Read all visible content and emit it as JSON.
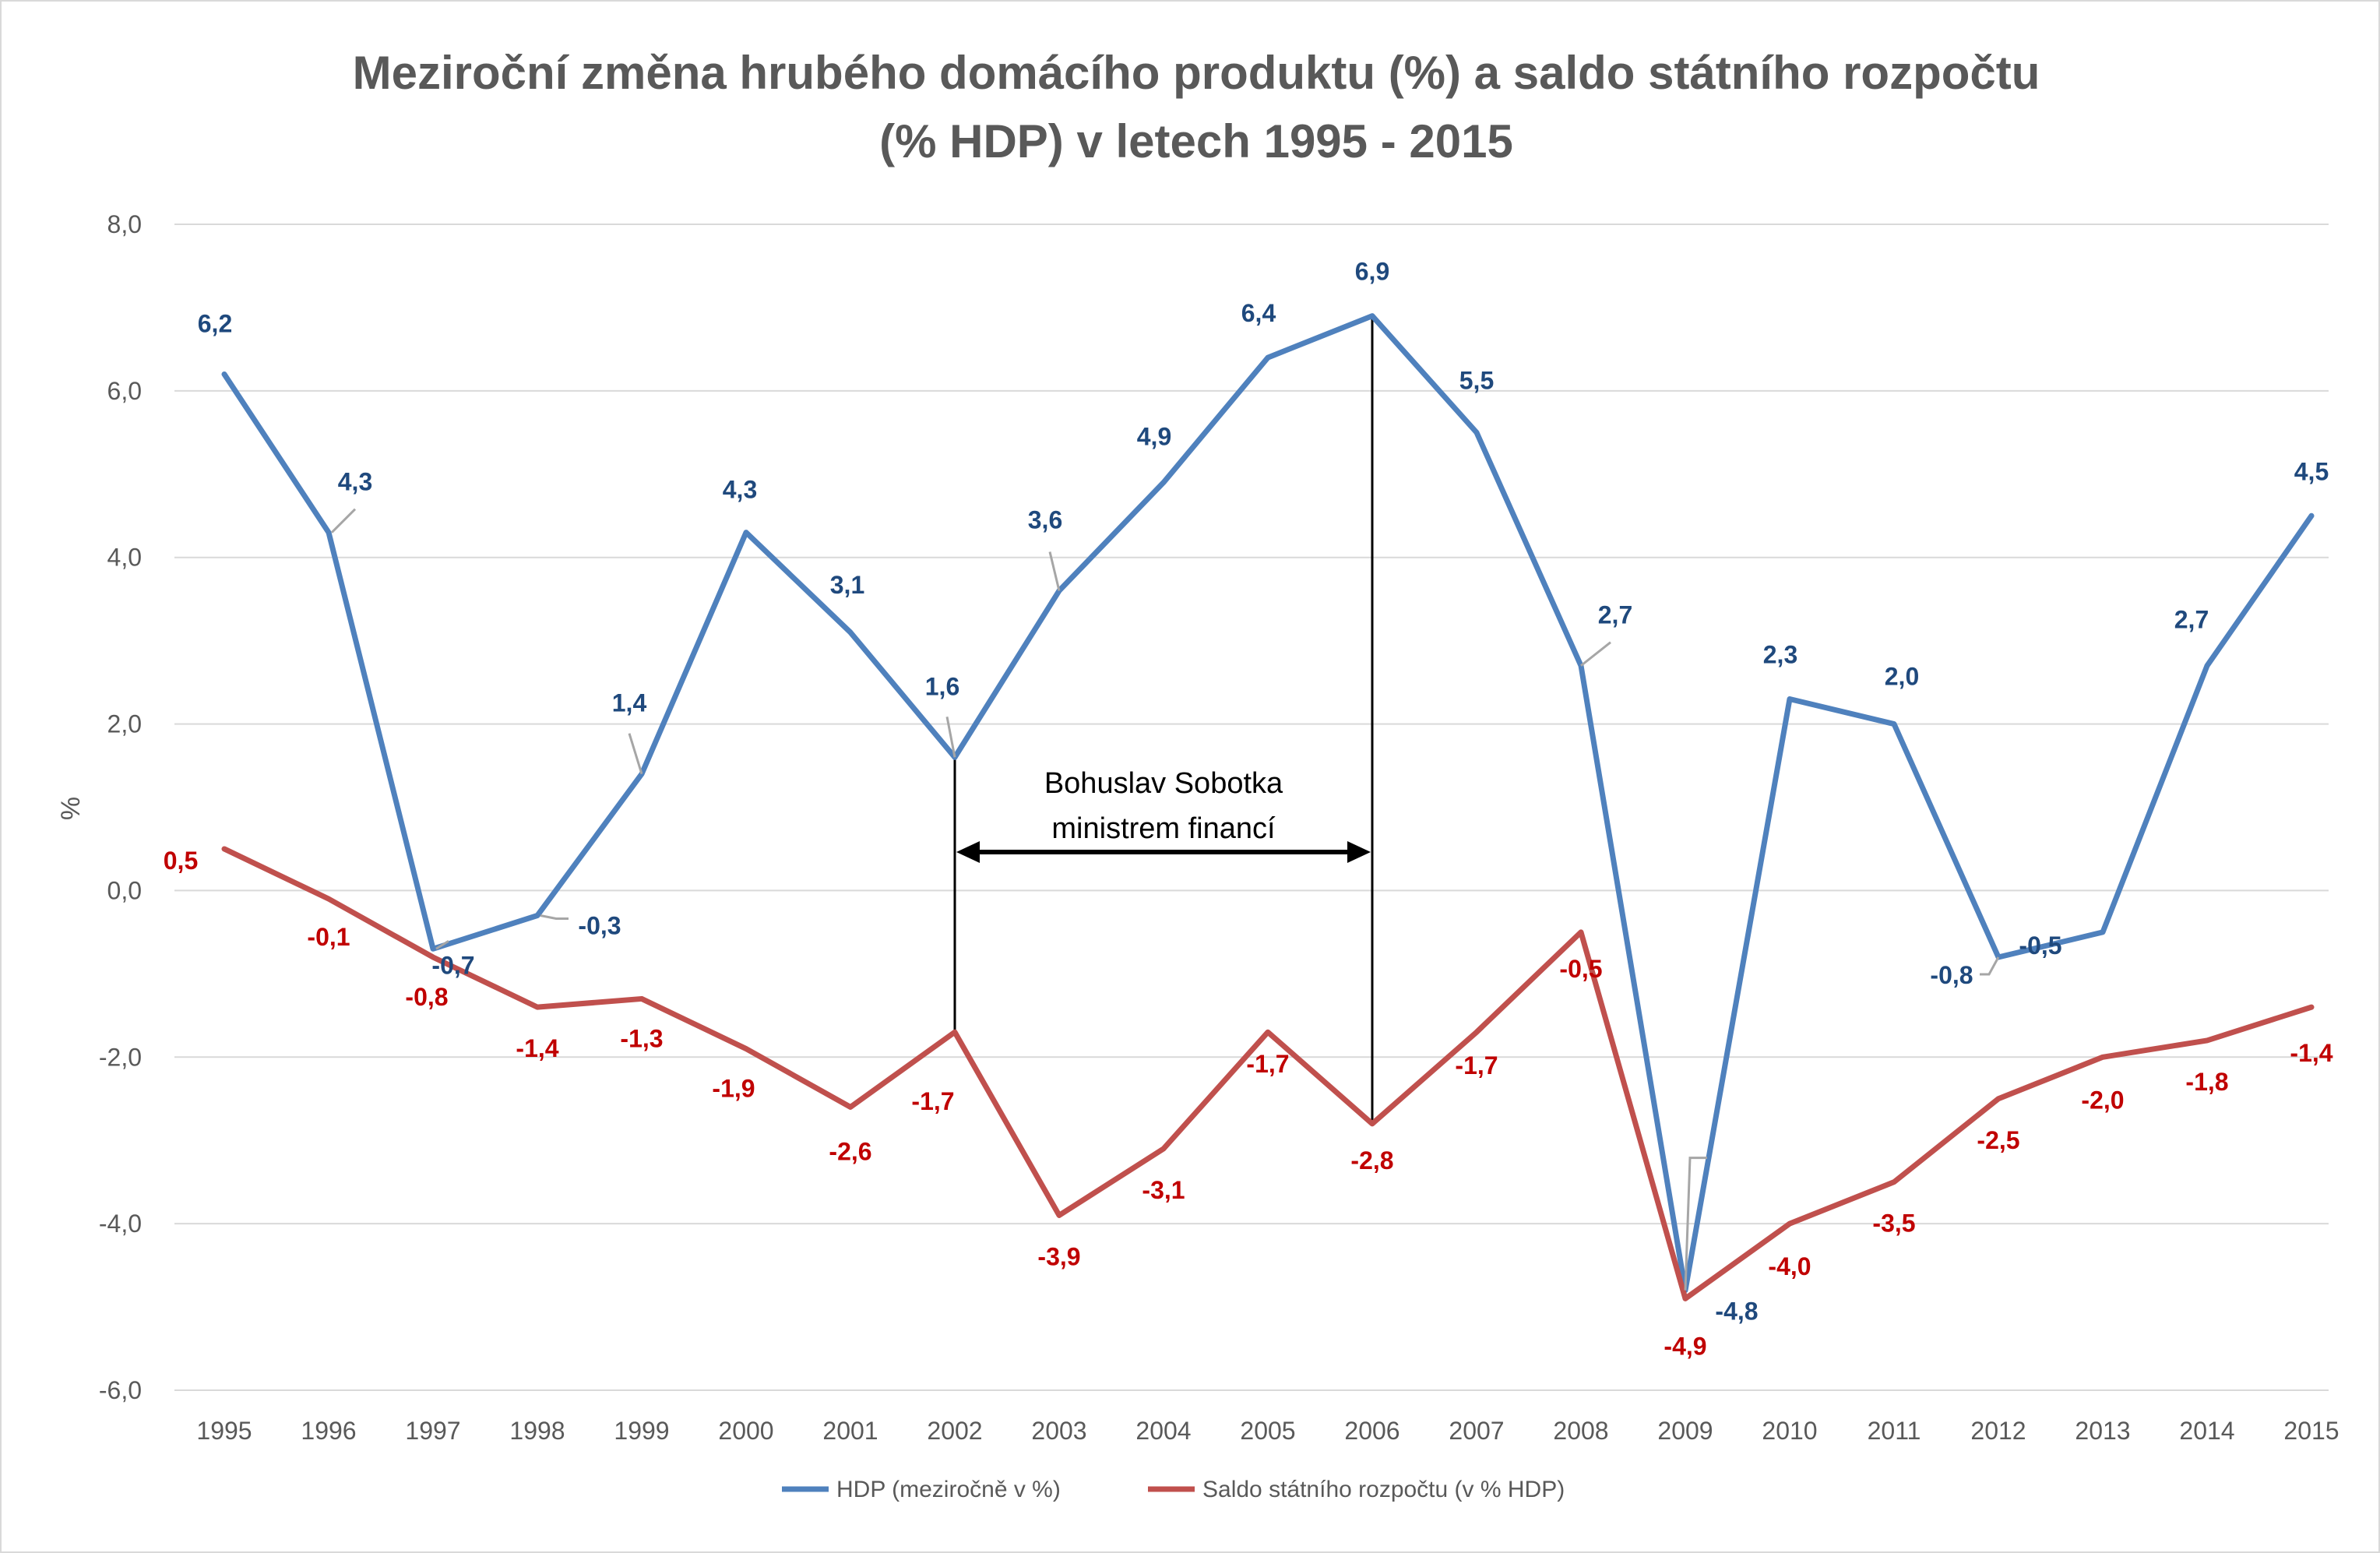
{
  "chart_data": {
    "type": "line",
    "title_lines": [
      "Meziroční změna hrubého domácího produktu (%) a saldo státního rozpočtu",
      "(% HDP) v letech 1995 - 2015"
    ],
    "ylabel": "%",
    "ylim": [
      -6,
      8
    ],
    "y_ticks": [
      "8,0",
      "6,0",
      "4,0",
      "2,0",
      "0,0",
      "-2,0",
      "-4,0",
      "-6,0"
    ],
    "y_tick_values": [
      8,
      6,
      4,
      2,
      0,
      -2,
      -4,
      -6
    ],
    "grid": true,
    "legend_position": "bottom",
    "categories": [
      "1995",
      "1996",
      "1997",
      "1998",
      "1999",
      "2000",
      "2001",
      "2002",
      "2003",
      "2004",
      "2005",
      "2006",
      "2007",
      "2008",
      "2009",
      "2010",
      "2011",
      "2012",
      "2013",
      "2014",
      "2015"
    ],
    "series": [
      {
        "name": "HDP (meziročně v %)",
        "color": "#4f81bd",
        "label_color": "#1f497d",
        "values": [
          6.2,
          4.3,
          -0.7,
          -0.3,
          1.4,
          4.3,
          3.1,
          1.6,
          3.6,
          4.9,
          6.4,
          6.9,
          5.5,
          2.7,
          -4.8,
          2.3,
          2.0,
          -0.8,
          -0.5,
          2.7,
          4.5
        ],
        "labels": [
          "6,2",
          "4,3",
          "-0,7",
          "-0,3",
          "1,4",
          "4,3",
          "3,1",
          "1,6",
          "3,6",
          "4,9",
          "6,4",
          "6,9",
          "5,5",
          "2,7",
          "-4,8",
          "2,3",
          "2,0",
          "-0,8",
          "-0,5",
          "2,7",
          "4,5"
        ]
      },
      {
        "name": "Saldo státního rozpočtu (v % HDP)",
        "color": "#c0504d",
        "label_color": "#c00000",
        "values": [
          0.5,
          -0.1,
          -0.8,
          -1.4,
          -1.3,
          -1.9,
          -2.6,
          -1.7,
          -3.9,
          -3.1,
          -1.7,
          -2.8,
          -1.7,
          -0.5,
          -4.9,
          -4.0,
          -3.5,
          -2.5,
          -2.0,
          -1.8,
          -1.4
        ],
        "labels": [
          "0,5",
          "-0,1",
          "-0,8",
          "-1,4",
          "-1,3",
          "-1,9",
          "-2,6",
          "-1,7",
          "-3,9",
          "-3,1",
          "-1,7",
          "-2,8",
          "-1,7",
          "-0,5",
          "-4,9",
          "-4,0",
          "-3,5",
          "-2,5",
          "-2,0",
          "-1,8",
          "-1,4"
        ]
      }
    ],
    "annotation": {
      "lines": [
        "Bohuslav Sobotka",
        "ministrem financí"
      ],
      "from_category": "2002",
      "to_category": "2006"
    }
  }
}
